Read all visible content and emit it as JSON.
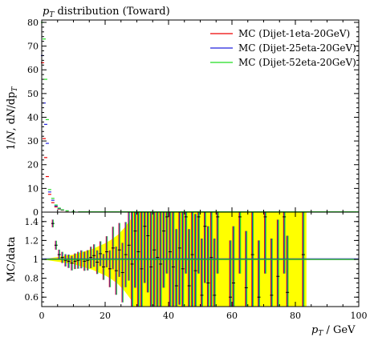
{
  "chart_data": [
    {
      "type": "scatter",
      "title": "p_T distribution (Toward)",
      "ylabel": "1/N dN/dp_T",
      "xlim": [
        0,
        100
      ],
      "ylim": [
        0,
        81
      ],
      "yticks": [
        0,
        10,
        20,
        30,
        40,
        50,
        60,
        70,
        80
      ],
      "grid": false,
      "legend_position": "top-right",
      "series": [
        {
          "name": "MC (Dijet-1eta-20GeV)",
          "color": "#ee0000",
          "x": [
            0.25,
            0.75,
            1.25,
            1.75,
            2.5,
            3.5,
            4.5,
            5.5,
            6.5,
            8,
            10,
            12
          ],
          "y": [
            63,
            31,
            23,
            15,
            7.5,
            4,
            2.2,
            1.3,
            0.8,
            0.45,
            0.2,
            0.1
          ]
        },
        {
          "name": "MC (Dijet-25eta-20GeV)",
          "color": "#2222dd",
          "x": [
            0.25,
            0.75,
            1.25,
            1.75,
            2.5,
            3.5,
            4.5,
            5.5,
            6.5,
            8,
            10,
            12
          ],
          "y": [
            66,
            46,
            37,
            29,
            8.5,
            5,
            2.6,
            1.5,
            0.9,
            0.5,
            0.22,
            0.11
          ]
        },
        {
          "name": "MC (Dijet-52eta-20GeV)",
          "color": "#22dd22",
          "x": [
            0.25,
            0.75,
            1.25,
            1.75,
            2.5,
            3.5,
            4.5,
            5.5,
            6.5,
            8,
            10,
            12
          ],
          "y": [
            80,
            73,
            56,
            39,
            9.5,
            5.8,
            3,
            1.7,
            1,
            0.55,
            0.25,
            0.12
          ]
        }
      ]
    },
    {
      "type": "scatter",
      "ylabel": "MC/data",
      "xlabel": "p_T / GeV",
      "xlim": [
        0,
        100
      ],
      "ylim": [
        0.5,
        1.5
      ],
      "xticks": [
        0,
        20,
        40,
        60,
        80,
        100
      ],
      "yticks": [
        0.6,
        0.8,
        1,
        1.2,
        1.4
      ],
      "reference_line": 1,
      "band_color": "#ffff00",
      "uncertainty_band": {
        "x": [
          0,
          2,
          4,
          6,
          8,
          10,
          12,
          14,
          16,
          18,
          20,
          22,
          24,
          26,
          28,
          30,
          40,
          55,
          83
        ],
        "half_width": [
          0,
          0.01,
          0.02,
          0.03,
          0.04,
          0.05,
          0.07,
          0.09,
          0.11,
          0.14,
          0.17,
          0.21,
          0.26,
          0.33,
          0.42,
          0.6,
          0.6,
          0.6,
          0.6
        ]
      },
      "solid_band_segments": [
        [
          28.5,
          44.5
        ],
        [
          45.5,
          46.5
        ],
        [
          76,
          77
        ],
        [
          82,
          83.5
        ]
      ],
      "points": {
        "x": [
          3.5,
          4.5,
          5.5,
          6.5,
          7.5,
          8.5,
          9.5,
          10.5,
          11.5,
          12.5,
          13.5,
          14.5,
          15.5,
          16.5,
          17.5,
          18.5,
          19.5,
          20.5,
          21.5,
          22.5,
          23.5,
          24.5,
          25.5,
          26.5,
          27.5,
          28.5,
          29.5,
          30.5,
          31.5,
          32.5,
          33.5,
          34.5,
          35.5,
          36.5,
          37.5,
          38.5,
          39.5,
          40.5,
          41.5,
          42.5,
          43.5,
          44.5,
          45.5,
          46.5,
          47.5,
          48.5,
          49.5,
          50.5,
          51.5,
          52.5,
          53.5,
          54.5,
          55.5,
          59.5,
          60.5,
          62.5,
          64.5,
          66.5,
          68.5,
          70.5,
          72.5,
          74.5,
          76.5,
          77.5,
          82.5
        ],
        "y": [
          1.38,
          1.15,
          1.05,
          1.02,
          0.99,
          0.98,
          0.96,
          0.98,
          0.99,
          1.0,
          0.98,
          0.99,
          1.02,
          1.04,
          0.97,
          1.06,
          0.92,
          1.08,
          0.9,
          1.12,
          0.88,
          1.1,
          0.86,
          1.05,
          1.15,
          0.95,
          1.3,
          1.08,
          0.9,
          1.35,
          1.25,
          0.92,
          1.1,
          1.02,
          0.95,
          1.3,
          1.45,
          1.08,
          0.92,
          0.72,
          1.12,
          0.9,
          1.45,
          0.72,
          1.05,
          0.88,
          1.45,
          0.62,
          1.35,
          0.75,
          1.02,
          0.62,
          1.45,
          0.6,
          0.75,
          1.45,
          0.7,
          1.05,
          0.6,
          1.45,
          0.62,
          0.82,
          1.45,
          0.65,
          1.05
        ]
      },
      "series_colors": [
        "#ee0000",
        "#2222dd",
        "#22dd22"
      ]
    }
  ]
}
